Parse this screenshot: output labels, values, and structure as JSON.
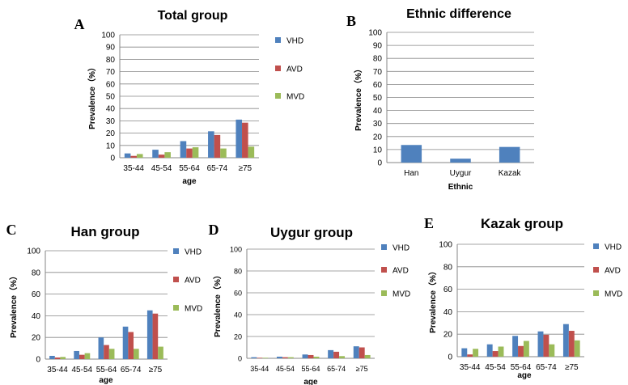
{
  "chart_data": [
    {
      "id": "A",
      "type": "bar",
      "panel_letter": "A",
      "title": "Total group",
      "xlabel": "age",
      "ylabel": "Prevalence（%）",
      "ylim": [
        0,
        100
      ],
      "yticks": [
        0,
        10,
        20,
        30,
        40,
        50,
        60,
        70,
        80,
        90,
        100
      ],
      "grid": true,
      "legend": "right",
      "categories": [
        "35-44",
        "45-54",
        "55-64",
        "65-74",
        "≥75"
      ],
      "series": [
        {
          "name": "VHD",
          "color": "#4F81BD",
          "values": [
            3.5,
            6.5,
            13.5,
            21.5,
            31.0
          ]
        },
        {
          "name": "AVD",
          "color": "#C0504D",
          "values": [
            1.5,
            2.5,
            7.5,
            18.5,
            28.5
          ]
        },
        {
          "name": "MVD",
          "color": "#9BBB59",
          "values": [
            3.0,
            4.5,
            8.5,
            7.5,
            9.0
          ]
        }
      ]
    },
    {
      "id": "B",
      "type": "bar",
      "panel_letter": "B",
      "title": "Ethnic difference",
      "xlabel": "Ethnic",
      "ylabel": "Prevalence（%）",
      "ylim": [
        0,
        100
      ],
      "yticks": [
        0,
        10,
        20,
        30,
        40,
        50,
        60,
        70,
        80,
        90,
        100
      ],
      "grid": true,
      "legend": "none",
      "categories": [
        "Han",
        "Uygur",
        "Kazak"
      ],
      "series": [
        {
          "color": "#4F81BD",
          "values": [
            13.5,
            3.0,
            12.0
          ]
        }
      ]
    },
    {
      "id": "C",
      "type": "bar",
      "panel_letter": "C",
      "title": "Han group",
      "xlabel": "age",
      "ylabel": "Prevalence（%）",
      "ylim": [
        0,
        100
      ],
      "yticks": [
        0,
        20,
        40,
        60,
        80,
        100
      ],
      "grid": true,
      "legend": "right",
      "categories": [
        "35-44",
        "45-54",
        "55-64",
        "65-74",
        "≥75"
      ],
      "series": [
        {
          "name": "VHD",
          "color": "#4F81BD",
          "values": [
            3.0,
            7.5,
            20.0,
            30.0,
            45.0
          ]
        },
        {
          "name": "AVD",
          "color": "#C0504D",
          "values": [
            1.5,
            4.0,
            13.0,
            25.0,
            42.0
          ]
        },
        {
          "name": "MVD",
          "color": "#9BBB59",
          "values": [
            2.0,
            5.5,
            9.5,
            9.5,
            11.5
          ]
        }
      ]
    },
    {
      "id": "D",
      "type": "bar",
      "panel_letter": "D",
      "title": "Uygur group",
      "xlabel": "age",
      "ylabel": "Prevalence（%）",
      "ylim": [
        0,
        100
      ],
      "yticks": [
        0,
        20,
        40,
        60,
        80,
        100
      ],
      "grid": true,
      "legend": "right",
      "categories": [
        "35-44",
        "45-54",
        "55-64",
        "65-74",
        "≥75"
      ],
      "series": [
        {
          "name": "VHD",
          "color": "#4F81BD",
          "values": [
            1.0,
            1.5,
            3.5,
            7.5,
            11.0
          ]
        },
        {
          "name": "AVD",
          "color": "#C0504D",
          "values": [
            0.5,
            1.0,
            3.0,
            6.0,
            10.0
          ]
        },
        {
          "name": "MVD",
          "color": "#9BBB59",
          "values": [
            0.5,
            1.0,
            1.5,
            2.0,
            3.0
          ]
        }
      ]
    },
    {
      "id": "E",
      "type": "bar",
      "panel_letter": "E",
      "title": "Kazak group",
      "xlabel": "age",
      "ylabel": "Prevalence（%）",
      "ylim": [
        0,
        100
      ],
      "yticks": [
        0,
        20,
        40,
        60,
        80,
        100
      ],
      "grid": true,
      "legend": "right",
      "categories": [
        "35-44",
        "45-54",
        "55-64",
        "65-74",
        "≥75"
      ],
      "series": [
        {
          "name": "VHD",
          "color": "#4F81BD",
          "values": [
            7.5,
            11.0,
            18.5,
            22.5,
            29.0
          ]
        },
        {
          "name": "AVD",
          "color": "#C0504D",
          "values": [
            2.0,
            5.0,
            9.5,
            19.5,
            23.0
          ]
        },
        {
          "name": "MVD",
          "color": "#9BBB59",
          "values": [
            7.0,
            9.0,
            14.0,
            11.0,
            14.5
          ]
        }
      ]
    }
  ]
}
